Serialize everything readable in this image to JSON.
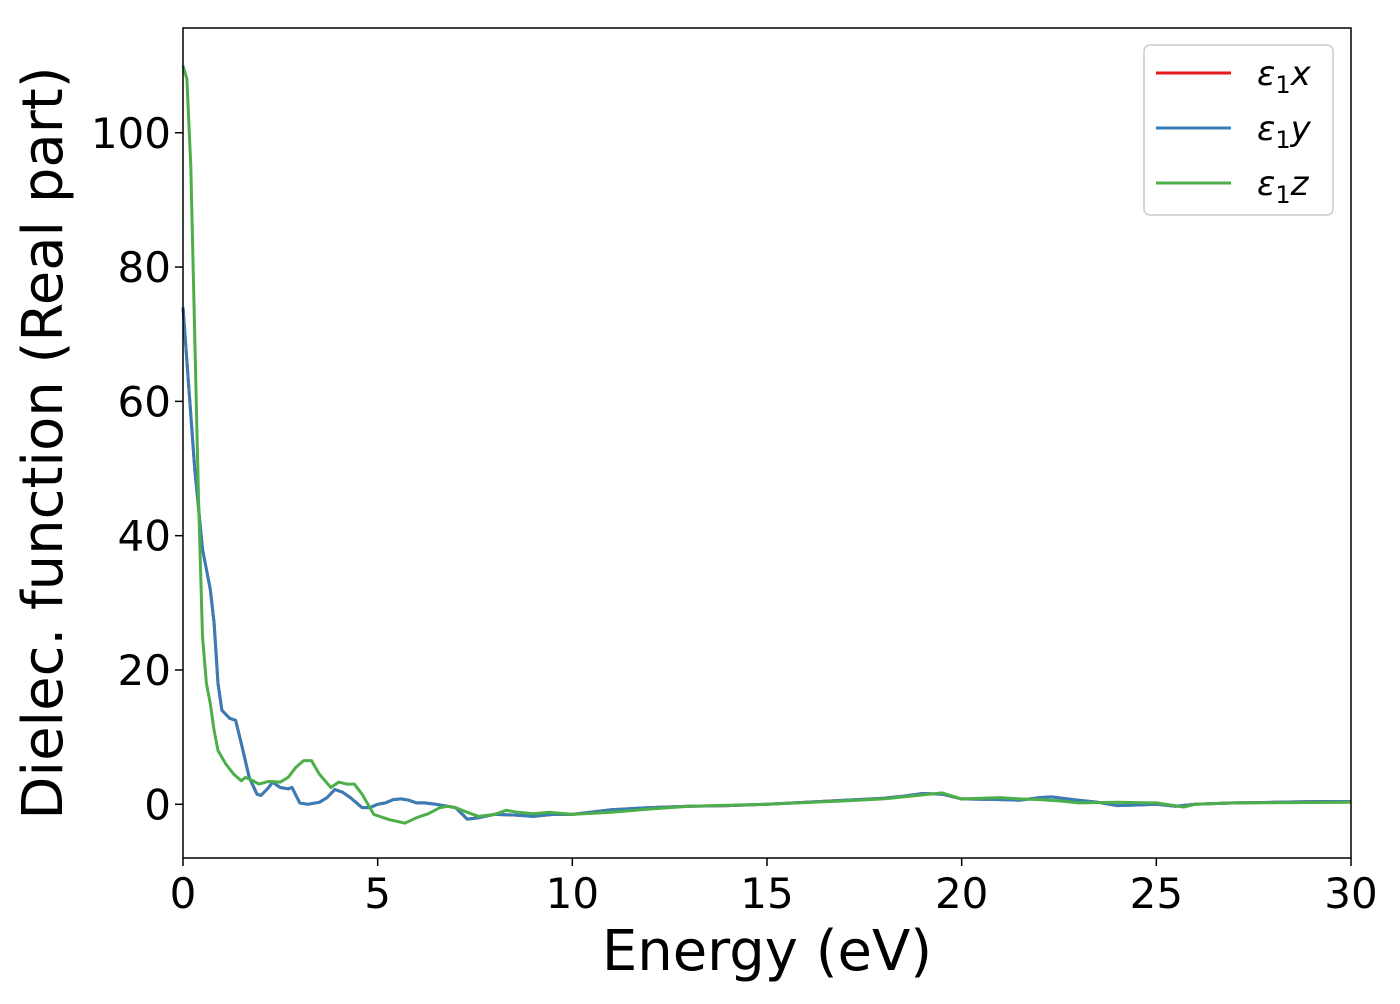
{
  "chart_data": {
    "type": "line",
    "title": "",
    "xlabel": "Energy (eV)",
    "ylabel": "Dielec. function (Real part)",
    "xlim": [
      0,
      30
    ],
    "ylim": [
      -8,
      115.6
    ],
    "xticks": [
      0,
      5,
      10,
      15,
      20,
      25,
      30
    ],
    "yticks": [
      0,
      20,
      40,
      60,
      80,
      100
    ],
    "grid": false,
    "legend_placement": "top-right",
    "series": [
      {
        "name": "ε1x",
        "label_main": "ε",
        "label_sub": "1",
        "label_axis": "x",
        "color": "#e41a1c",
        "x": [
          0,
          0.3,
          0.5,
          0.7,
          0.8,
          0.9,
          1.0,
          1.2,
          1.35,
          1.5,
          1.7,
          1.9,
          2.0,
          2.2,
          2.3,
          2.5,
          2.7,
          2.8,
          3.0,
          3.2,
          3.5,
          3.7,
          3.9,
          4.1,
          4.3,
          4.6,
          4.8,
          5.0,
          5.2,
          5.4,
          5.6,
          5.8,
          6.0,
          6.2,
          6.5,
          7.0,
          7.3,
          7.6,
          8.0,
          8.5,
          9,
          9.5,
          10,
          11,
          12,
          13,
          14,
          15,
          16,
          17,
          18,
          18.5,
          19,
          19.5,
          20,
          21,
          21.5,
          22,
          22.3,
          23,
          23.5,
          24,
          25,
          25.5,
          26,
          27,
          28,
          29,
          30
        ],
        "y": [
          74,
          50,
          38,
          32,
          27,
          18,
          14,
          12.8,
          12.5,
          9,
          4,
          1.5,
          1.3,
          2.5,
          3.3,
          2.5,
          2.3,
          2.5,
          0.2,
          0,
          0.3,
          1,
          2.2,
          1.8,
          1,
          -0.5,
          -0.5,
          0,
          0.2,
          0.7,
          0.8,
          0.6,
          0.2,
          0.2,
          0,
          -0.5,
          -2.2,
          -2.0,
          -1.5,
          -1.6,
          -1.8,
          -1.5,
          -1.5,
          -0.8,
          -0.5,
          -0.3,
          -0.2,
          0,
          0.3,
          0.6,
          0.9,
          1.2,
          1.6,
          1.5,
          0.8,
          0.7,
          0.6,
          1.0,
          1.1,
          0.6,
          0.3,
          -0.2,
          0,
          -0.3,
          0,
          0.2,
          0.3,
          0.4,
          0.4
        ]
      },
      {
        "name": "ε1y",
        "label_main": "ε",
        "label_sub": "1",
        "label_axis": "y",
        "color": "#377eb8",
        "x": [
          0,
          0.3,
          0.5,
          0.7,
          0.8,
          0.9,
          1.0,
          1.2,
          1.35,
          1.5,
          1.7,
          1.9,
          2.0,
          2.2,
          2.3,
          2.5,
          2.7,
          2.8,
          3.0,
          3.2,
          3.5,
          3.7,
          3.9,
          4.1,
          4.3,
          4.6,
          4.8,
          5.0,
          5.2,
          5.4,
          5.6,
          5.8,
          6.0,
          6.2,
          6.5,
          7.0,
          7.3,
          7.6,
          8.0,
          8.5,
          9,
          9.5,
          10,
          11,
          12,
          13,
          14,
          15,
          16,
          17,
          18,
          18.5,
          19,
          19.5,
          20,
          21,
          21.5,
          22,
          22.3,
          23,
          23.5,
          24,
          25,
          25.5,
          26,
          27,
          28,
          29,
          30
        ],
        "y": [
          74,
          50,
          38,
          32,
          27,
          18,
          14,
          12.8,
          12.5,
          9,
          4,
          1.5,
          1.3,
          2.5,
          3.3,
          2.5,
          2.3,
          2.5,
          0.2,
          0,
          0.3,
          1,
          2.2,
          1.8,
          1,
          -0.5,
          -0.5,
          0,
          0.2,
          0.7,
          0.8,
          0.6,
          0.2,
          0.2,
          0,
          -0.5,
          -2.2,
          -2.0,
          -1.5,
          -1.6,
          -1.8,
          -1.5,
          -1.5,
          -0.8,
          -0.5,
          -0.3,
          -0.2,
          0,
          0.3,
          0.6,
          0.9,
          1.2,
          1.6,
          1.5,
          0.8,
          0.7,
          0.6,
          1.0,
          1.1,
          0.6,
          0.3,
          -0.2,
          0,
          -0.3,
          0,
          0.2,
          0.3,
          0.4,
          0.4
        ]
      },
      {
        "name": "ε1z",
        "label_main": "ε",
        "label_sub": "1",
        "label_axis": "z",
        "color": "#4daf4a",
        "x": [
          0,
          0.1,
          0.2,
          0.3,
          0.4,
          0.5,
          0.6,
          0.7,
          0.8,
          0.9,
          1.1,
          1.3,
          1.5,
          1.6,
          1.8,
          1.95,
          2.2,
          2.5,
          2.7,
          2.9,
          3.1,
          3.3,
          3.5,
          3.8,
          4.0,
          4.2,
          4.4,
          4.6,
          4.9,
          5.3,
          5.7,
          6.0,
          6.3,
          6.6,
          6.8,
          7.0,
          7.3,
          7.6,
          8.0,
          8.3,
          8.6,
          9.0,
          9.4,
          10,
          11,
          12,
          13,
          15,
          17,
          18,
          19,
          19.5,
          20,
          20.5,
          21,
          21.5,
          22,
          22.5,
          23,
          24,
          25,
          25.7,
          26,
          27,
          30
        ],
        "y": [
          110,
          108,
          95,
          70,
          45,
          25,
          18,
          15,
          11,
          8,
          6,
          4.5,
          3.5,
          4,
          3.5,
          3,
          3.4,
          3.3,
          4,
          5.5,
          6.5,
          6.5,
          4.5,
          2.5,
          3.3,
          3,
          3,
          1.5,
          -1.5,
          -2.3,
          -2.8,
          -2,
          -1.4,
          -0.5,
          -0.3,
          -0.5,
          -1.2,
          -1.8,
          -1.5,
          -0.9,
          -1.2,
          -1.4,
          -1.2,
          -1.5,
          -1.2,
          -0.7,
          -0.3,
          0,
          0.5,
          0.8,
          1.4,
          1.7,
          0.8,
          0.9,
          1.0,
          0.8,
          0.7,
          0.5,
          0.2,
          0.3,
          0.2,
          -0.4,
          0,
          0.2,
          0.3
        ]
      }
    ]
  }
}
